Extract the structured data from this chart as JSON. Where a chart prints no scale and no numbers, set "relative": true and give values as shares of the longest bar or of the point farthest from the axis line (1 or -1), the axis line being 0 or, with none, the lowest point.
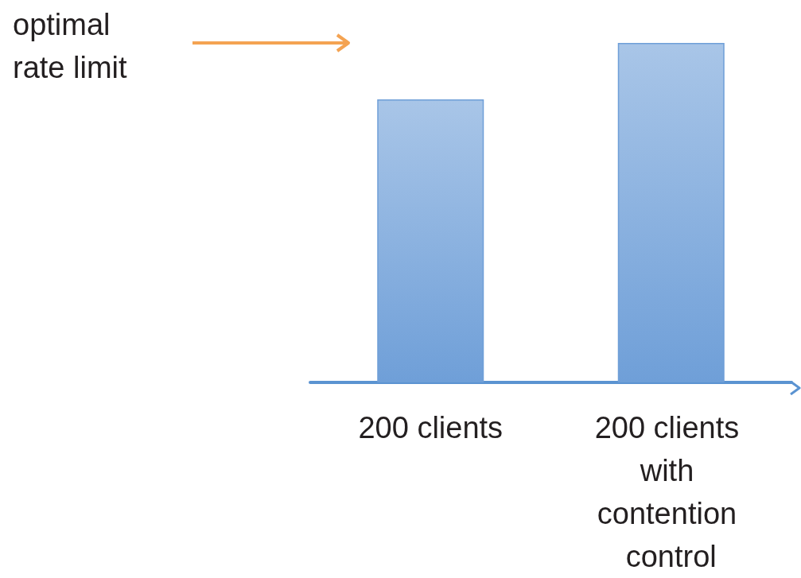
{
  "chart_data": {
    "type": "bar",
    "relative": true,
    "categories": [
      "200 clients",
      "200 clients with contention control"
    ],
    "values": [
      0.834,
      1
    ],
    "color": "#6f9fd8",
    "annotations": [
      "optimal rate limit"
    ]
  }
}
